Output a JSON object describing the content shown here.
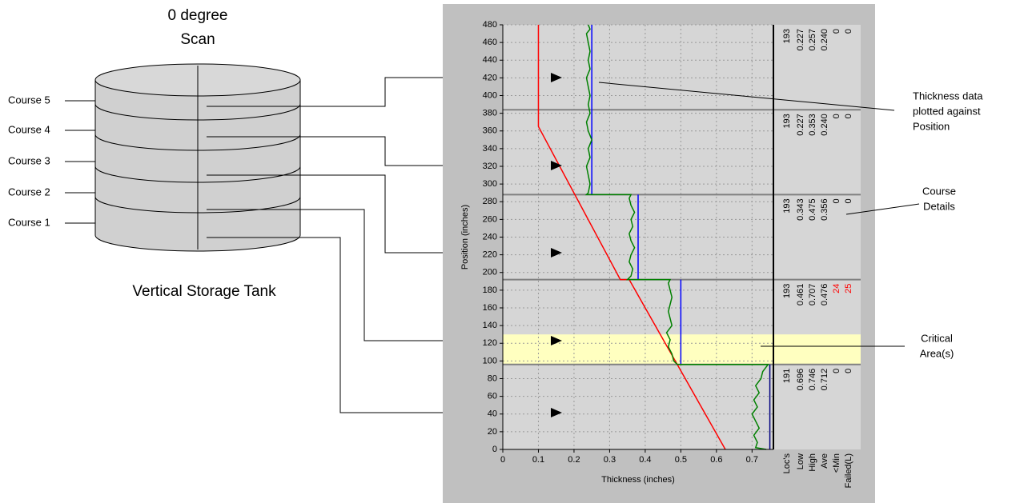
{
  "tank": {
    "title_lines": [
      "0 degree",
      "Scan"
    ],
    "caption": "Vertical Storage Tank",
    "courses": [
      "Course 5",
      "Course 4",
      "Course 3",
      "Course 2",
      "Course 1"
    ]
  },
  "chart_data": {
    "type": "line",
    "xlabel": "Thickness (inches)",
    "ylabel": "Position (inches)",
    "xlim": [
      0,
      0.76
    ],
    "ylim": [
      0,
      480
    ],
    "xticks": [
      0,
      0.1,
      0.2,
      0.3,
      0.4,
      0.5,
      0.6,
      0.7
    ],
    "yticks": [
      0,
      20,
      40,
      60,
      80,
      100,
      120,
      140,
      160,
      180,
      200,
      220,
      240,
      260,
      280,
      300,
      320,
      340,
      360,
      380,
      400,
      420,
      440,
      460,
      480
    ],
    "grid": true,
    "critical_area": {
      "position": [
        96,
        130
      ],
      "color": "#ffffc0"
    },
    "course_boundaries": [
      384,
      288,
      192,
      96
    ],
    "series": [
      {
        "color": "#ff0000",
        "thickness": [
          0.1,
          0.1,
          0.33,
          0.355,
          0.625
        ],
        "position": [
          480,
          365,
          192,
          192,
          0
        ]
      },
      {
        "color": "#0000ff",
        "thickness": [
          0.25,
          0.25
        ],
        "position": [
          288,
          480
        ]
      },
      {
        "color": "#0000ff",
        "thickness": [
          0.38,
          0.38
        ],
        "position": [
          192,
          288
        ]
      },
      {
        "color": "#0000ff",
        "thickness": [
          0.5,
          0.5
        ],
        "position": [
          96,
          192
        ]
      },
      {
        "color": "#000080",
        "thickness": [
          0.75,
          0.75
        ],
        "position": [
          0,
          96
        ]
      },
      {
        "color": "#008000",
        "thickness": [
          0.74,
          0.71,
          0.715,
          0.705,
          0.72,
          0.71,
          0.7,
          0.715,
          0.705,
          0.72,
          0.71,
          0.725,
          0.73,
          0.745,
          0.49,
          0.48,
          0.475,
          0.465,
          0.47,
          0.46,
          0.475,
          0.47,
          0.465,
          0.47,
          0.475,
          0.47,
          0.465,
          0.47,
          0.35,
          0.36,
          0.365,
          0.355,
          0.36,
          0.37,
          0.36,
          0.355,
          0.365,
          0.36,
          0.37,
          0.36,
          0.355,
          0.36,
          0.235,
          0.24,
          0.245,
          0.24,
          0.235,
          0.245,
          0.24,
          0.25,
          0.24,
          0.235,
          0.245,
          0.24,
          0.245,
          0.24,
          0.235,
          0.245,
          0.24,
          0.245,
          0.24,
          0.235,
          0.245,
          0.24
        ],
        "position": [
          0,
          2,
          8,
          16,
          24,
          32,
          40,
          48,
          56,
          64,
          72,
          80,
          88,
          96,
          96,
          100,
          108,
          116,
          124,
          132,
          140,
          148,
          156,
          164,
          172,
          180,
          188,
          192,
          192,
          196,
          204,
          212,
          220,
          228,
          236,
          244,
          252,
          260,
          268,
          276,
          284,
          288,
          288,
          290,
          300,
          310,
          320,
          330,
          340,
          350,
          360,
          370,
          380,
          390,
          400,
          410,
          420,
          430,
          440,
          450,
          460,
          470,
          475,
          480
        ]
      }
    ],
    "course_details": {
      "headers": [
        "Loc's",
        "Low",
        "High",
        "Ave",
        "<Min",
        "Failed(L)"
      ],
      "rows": [
        [
          "193",
          "0.227",
          "0.257",
          "0.240",
          "0",
          "0"
        ],
        [
          "193",
          "0.227",
          "0.353",
          "0.240",
          "0",
          "0"
        ],
        [
          "193",
          "0.343",
          "0.475",
          "0.356",
          "0",
          "0"
        ],
        [
          "193",
          "0.461",
          "0.707",
          "0.476",
          "24",
          "25"
        ],
        [
          "191",
          "0.696",
          "0.746",
          "0.712",
          "0",
          "0"
        ]
      ],
      "alert_color": "#ff0000"
    },
    "annotations": [
      {
        "lines": [
          "Thickness data",
          "plotted against",
          "Position"
        ]
      },
      {
        "lines": [
          "Course",
          "Details"
        ]
      },
      {
        "lines": [
          "Critical",
          "Area(s)"
        ]
      }
    ]
  }
}
